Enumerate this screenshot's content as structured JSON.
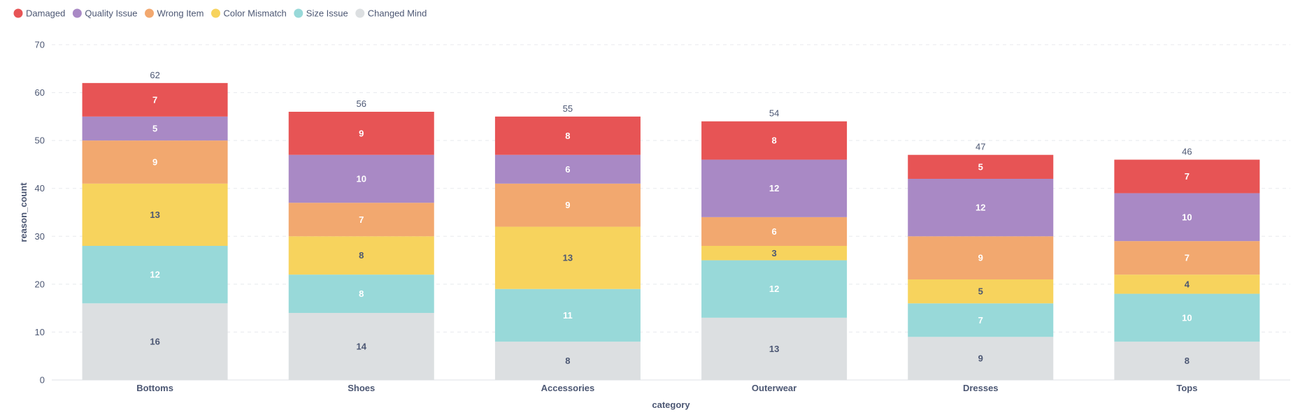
{
  "chart_data": {
    "type": "bar",
    "stacked": true,
    "xlabel": "category",
    "ylabel": "reason_count",
    "ylim": [
      0,
      70
    ],
    "yticks": [
      0,
      10,
      20,
      30,
      40,
      50,
      60,
      70
    ],
    "grid": true,
    "legend_position": "top-left",
    "categories": [
      "Bottoms",
      "Shoes",
      "Accessories",
      "Outerwear",
      "Dresses",
      "Tops"
    ],
    "totals": [
      62,
      56,
      55,
      54,
      47,
      46
    ],
    "series": [
      {
        "name": "Changed Mind",
        "color": "#dcdfe1",
        "label_color": "#4c5773",
        "values": [
          16,
          14,
          8,
          13,
          9,
          8
        ]
      },
      {
        "name": "Size Issue",
        "color": "#98d9d9",
        "label_color": "#ffffff",
        "values": [
          12,
          8,
          11,
          12,
          7,
          10
        ]
      },
      {
        "name": "Color Mismatch",
        "color": "#f7d35d",
        "label_color": "#4c5773",
        "values": [
          13,
          8,
          13,
          3,
          5,
          4
        ]
      },
      {
        "name": "Wrong Item",
        "color": "#f2a86f",
        "label_color": "#ffffff",
        "values": [
          9,
          7,
          9,
          6,
          9,
          7
        ]
      },
      {
        "name": "Quality Issue",
        "color": "#a989c5",
        "label_color": "#ffffff",
        "values": [
          5,
          10,
          6,
          12,
          12,
          10
        ]
      },
      {
        "name": "Damaged",
        "color": "#e75455",
        "label_color": "#ffffff",
        "values": [
          7,
          9,
          8,
          8,
          5,
          7
        ]
      }
    ],
    "legend_order": [
      "Damaged",
      "Quality Issue",
      "Wrong Item",
      "Color Mismatch",
      "Size Issue",
      "Changed Mind"
    ]
  }
}
